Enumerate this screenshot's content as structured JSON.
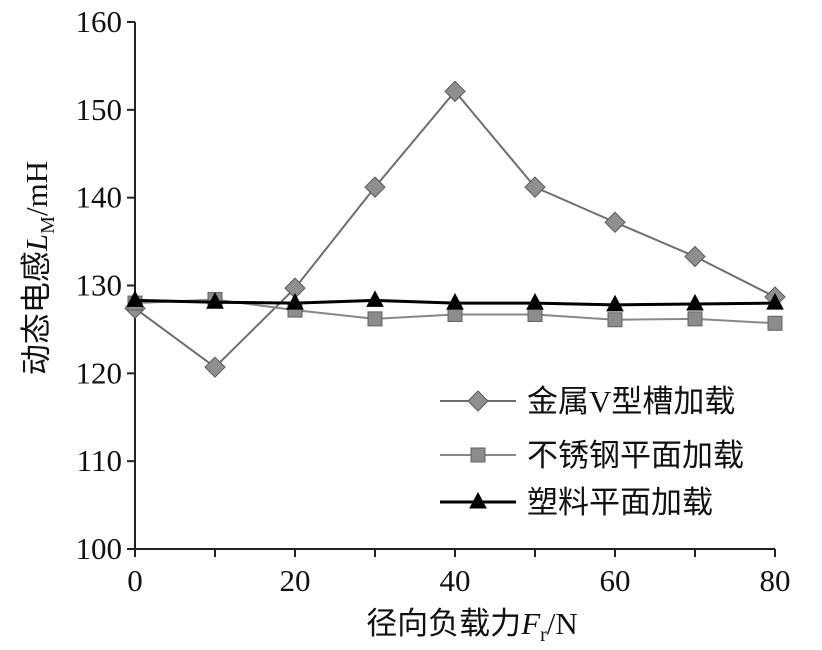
{
  "chart_data": {
    "type": "line",
    "title": "",
    "xlabel": {
      "text": "径向负载力",
      "var": "F",
      "sub": "r",
      "unit": "/N"
    },
    "ylabel": {
      "text": "动态电感",
      "var": "L",
      "sub": "M",
      "unit": "/mH"
    },
    "x": [
      0,
      10,
      20,
      30,
      40,
      50,
      60,
      70,
      80
    ],
    "xticks": [
      0,
      20,
      40,
      60,
      80
    ],
    "yticks": [
      100,
      110,
      120,
      130,
      140,
      150,
      160
    ],
    "xlim": [
      0,
      80
    ],
    "ylim": [
      100,
      160
    ],
    "grid": false,
    "legend_position": "bottom-right",
    "axis_color": "#222222",
    "series": [
      {
        "name": "金属V型槽加载",
        "marker": "diamond",
        "color": "#6e6e6e",
        "marker_fill": "#8f8f8f",
        "marker_edge": "#5a5a5a",
        "values": [
          127.4,
          120.7,
          129.7,
          141.2,
          152.1,
          141.2,
          137.2,
          133.3,
          128.7
        ]
      },
      {
        "name": "不锈钢平面加载",
        "marker": "square",
        "color": "#888888",
        "marker_fill": "#8c8c8c",
        "marker_edge": "#606060",
        "values": [
          128.0,
          128.4,
          127.2,
          126.2,
          126.7,
          126.7,
          126.1,
          126.2,
          125.7
        ]
      },
      {
        "name": "塑料平面加载",
        "marker": "triangle",
        "color": "#000000",
        "marker_fill": "#000000",
        "marker_edge": "#000000",
        "values": [
          128.3,
          128.1,
          128.0,
          128.3,
          128.0,
          128.0,
          127.8,
          127.9,
          128.0
        ]
      }
    ]
  }
}
